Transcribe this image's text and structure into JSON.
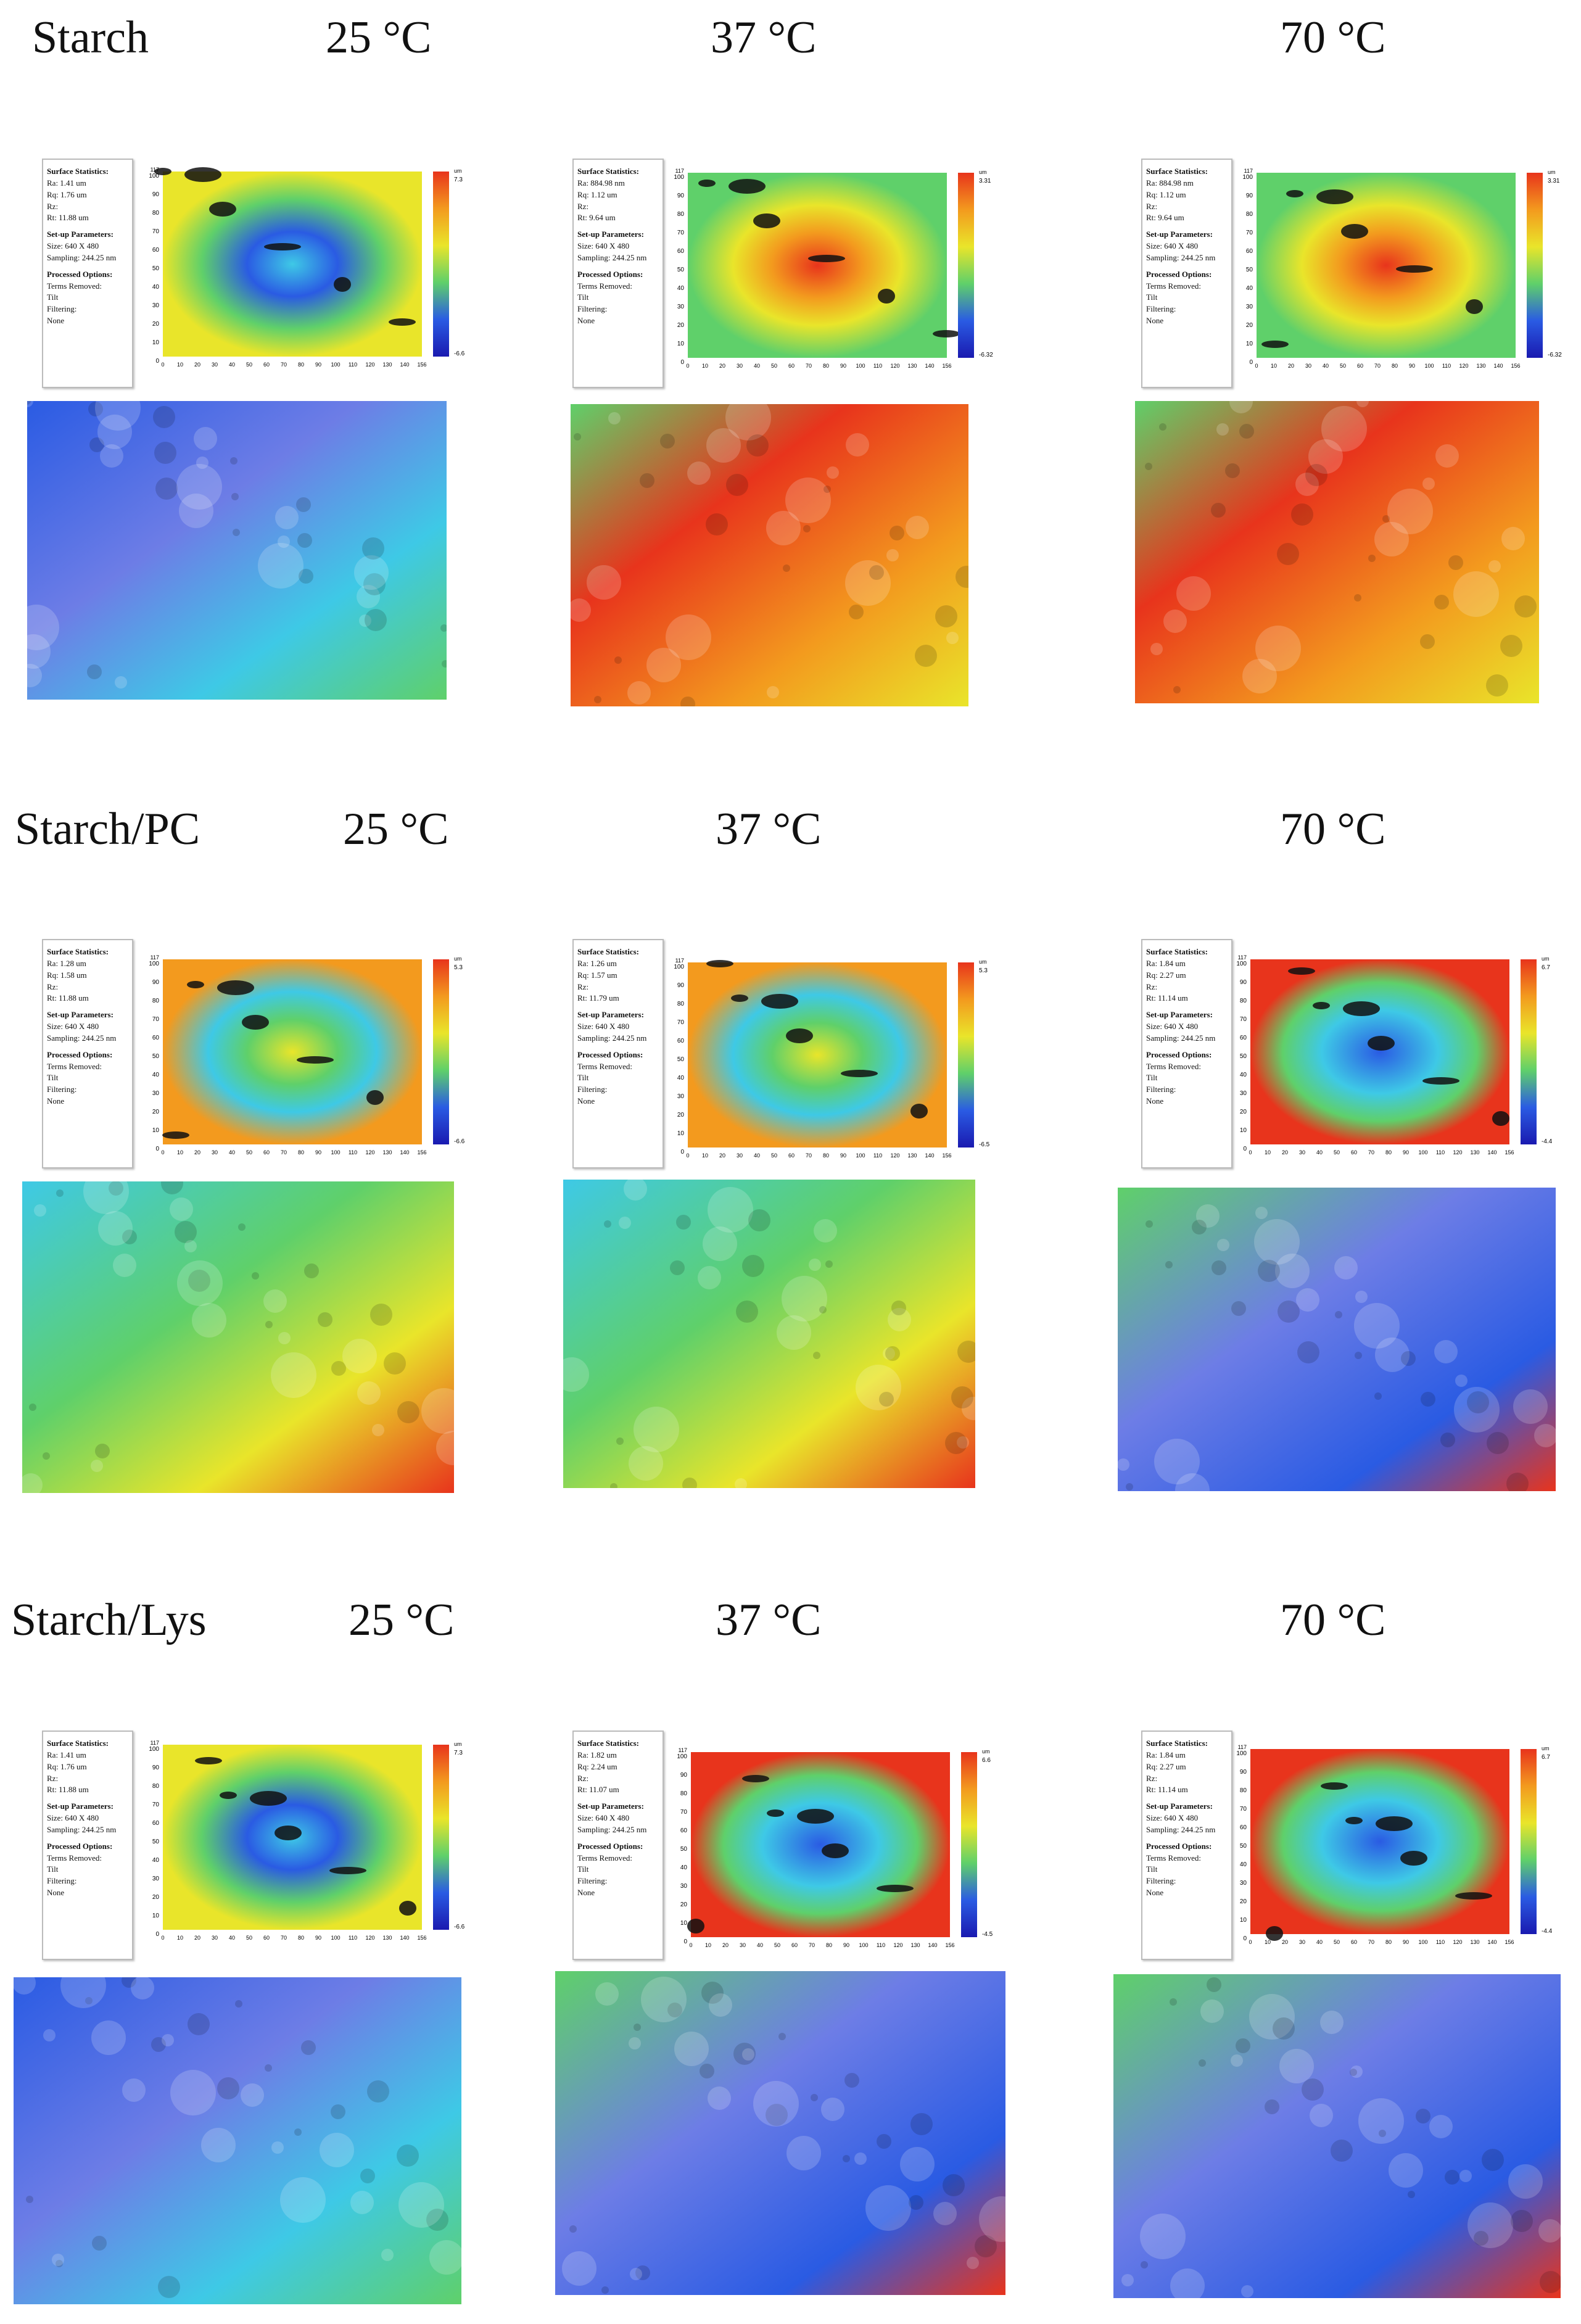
{
  "rows": [
    {
      "label": "Starch",
      "panels": [
        {
          "temp": "25 °C",
          "ra": "Ra:  1.41 um",
          "rq": "Rq:  1.76 um",
          "rz": "Rz:",
          "rt": "Rt:  11.88 um",
          "scale_top": "7.3",
          "scale_bottom": "-6.6",
          "tone": "blue"
        },
        {
          "temp": "37 °C",
          "ra": "Ra:  884.98 nm",
          "rq": "Rq:  1.12 um",
          "rz": "Rz:",
          "rt": "Rt:  9.64 um",
          "scale_top": "3.31",
          "scale_bottom": "-6.32",
          "tone": "red"
        },
        {
          "temp": "70 °C",
          "ra": "Ra:  884.98 nm",
          "rq": "Rq:  1.12 um",
          "rz": "Rz:",
          "rt": "Rt:  9.64 um",
          "scale_top": "3.31",
          "scale_bottom": "-6.32",
          "tone": "red"
        }
      ]
    },
    {
      "label": "Starch/PC",
      "panels": [
        {
          "temp": "25 °C",
          "ra": "Ra:  1.28 um",
          "rq": "Rq:  1.58 um",
          "rz": "Rz:",
          "rt": "Rt:  11.88 um",
          "scale_top": "5.3",
          "scale_bottom": "-6.6",
          "tone": "mixed"
        },
        {
          "temp": "37 °C",
          "ra": "Ra:  1.26 um",
          "rq": "Rq:  1.57 um",
          "rz": "Rz:",
          "rt": "Rt:  11.79 um",
          "scale_top": "5.3",
          "scale_bottom": "-6.5",
          "tone": "mixed"
        },
        {
          "temp": "70 °C",
          "ra": "Ra:  1.84 um",
          "rq": "Rq:  2.27 um",
          "rz": "Rz:",
          "rt": "Rt:  11.14 um",
          "scale_top": "6.7",
          "scale_bottom": "-4.4",
          "tone": "bluered"
        }
      ]
    },
    {
      "label": "Starch/Lys",
      "panels": [
        {
          "temp": "25 °C",
          "ra": "Ra:  1.41 um",
          "rq": "Rq:  1.76 um",
          "rz": "Rz:",
          "rt": "Rt:  11.88 um",
          "scale_top": "7.3",
          "scale_bottom": "-6.6",
          "tone": "blue"
        },
        {
          "temp": "37 °C",
          "ra": "Ra:  1.82 um",
          "rq": "Rq:  2.24 um",
          "rz": "Rz:",
          "rt": "Rt:  11.07 um",
          "scale_top": "6.6",
          "scale_bottom": "-4.5",
          "tone": "bluered"
        },
        {
          "temp": "70 °C",
          "ra": "Ra:  1.84 um",
          "rq": "Rq:  2.27 um",
          "rz": "Rz:",
          "rt": "Rt:  11.14 um",
          "scale_top": "6.7",
          "scale_bottom": "-4.4",
          "tone": "bluered"
        }
      ]
    }
  ],
  "common": {
    "surface_statistics": "Surface Statistics:",
    "setup_parameters": "Set-up Parameters:",
    "size": "Size: 640 X 480",
    "sampling": "Sampling:  244.25 nm",
    "processed_options": "Processed Options:",
    "terms_removed": "Terms Removed:",
    "tilt": "Tilt",
    "filtering": "Filtering:",
    "none": "None",
    "unit": "um",
    "y_max": "117",
    "x_ticks": [
      "0",
      "10",
      "20",
      "30",
      "40",
      "50",
      "60",
      "70",
      "80",
      "90",
      "100",
      "110",
      "120",
      "130",
      "140",
      "156"
    ],
    "y_ticks": [
      "100",
      "90",
      "80",
      "70",
      "60",
      "50",
      "40",
      "30",
      "20",
      "10",
      "0"
    ]
  },
  "colors": {
    "red": "#e8341c",
    "orange": "#f39a1e",
    "yellow": "#e9e52a",
    "green": "#5fd06a",
    "cyan": "#3ec9e6",
    "blue": "#2a5be3",
    "navy": "#1a1ab0"
  }
}
